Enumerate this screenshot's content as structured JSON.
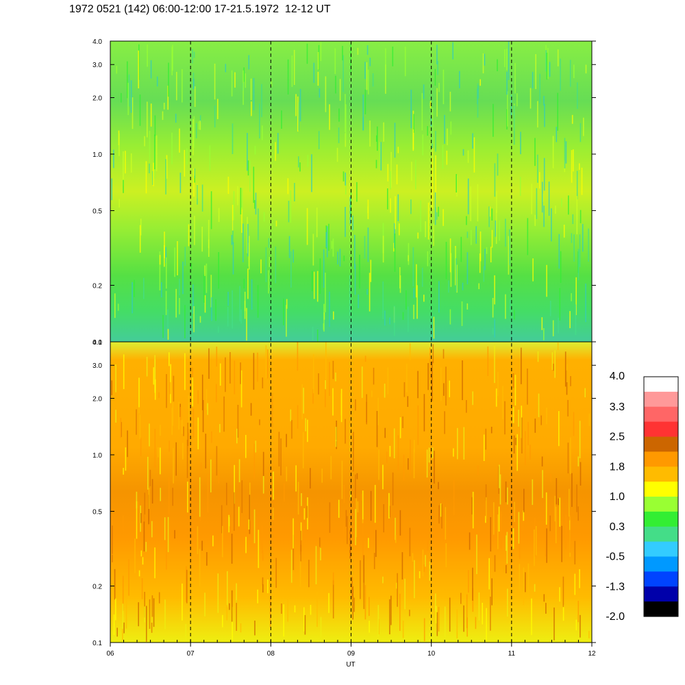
{
  "title": "1972 0521 (142) 06:00-12:00 17-21.5.1972  12-12 UT",
  "chart_data": {
    "type": "heatmap",
    "title": "1972 0521 (142) 06:00-12:00 17-21.5.1972  12-12 UT",
    "xlabel": "UT",
    "x_ticks": [
      "06",
      "07",
      "08",
      "09",
      "10",
      "11",
      "12"
    ],
    "xlim": [
      6,
      12
    ],
    "y_scale": "log",
    "ylim": [
      0.1,
      4.0
    ],
    "y_ticks": [
      "0.1",
      "0.2",
      "0.5",
      "1.0",
      "2.0",
      "3.0",
      "4.0"
    ],
    "y_values": [
      0.1,
      0.2,
      0.5,
      1.0,
      2.0,
      3.0,
      4.0
    ],
    "panels": [
      {
        "name": "upper",
        "dominant_levels": [
          {
            "y_range": [
              0.1,
              0.15
            ],
            "level": 0.0
          },
          {
            "y_range": [
              0.15,
              0.3
            ],
            "level": 0.3
          },
          {
            "y_range": [
              0.3,
              0.8
            ],
            "level": 0.8
          },
          {
            "y_range": [
              0.8,
              1.5
            ],
            "level": 0.9
          },
          {
            "y_range": [
              1.5,
              4.0
            ],
            "level": 0.6
          }
        ]
      },
      {
        "name": "lower",
        "dominant_levels": [
          {
            "y_range": [
              0.1,
              0.15
            ],
            "level": 1.2
          },
          {
            "y_range": [
              0.15,
              0.4
            ],
            "level": 1.5
          },
          {
            "y_range": [
              0.4,
              1.2
            ],
            "level": 1.8
          },
          {
            "y_range": [
              1.2,
              3.5
            ],
            "level": 1.6
          },
          {
            "y_range": [
              3.5,
              4.0
            ],
            "level": 1.0
          }
        ]
      }
    ],
    "colorbar": {
      "labels": [
        "4.0",
        "3.3",
        "2.5",
        "1.8",
        "1.0",
        "0.3",
        "-0.5",
        "-1.3",
        "-2.0"
      ],
      "colors": [
        "#ffffff",
        "#ff9999",
        "#ff6666",
        "#ff3333",
        "#cc6600",
        "#ff9900",
        "#ffbb00",
        "#ffff00",
        "#99ff33",
        "#33ee33",
        "#44dd88",
        "#33ccff",
        "#0099ff",
        "#0044ff",
        "#0000aa",
        "#000000"
      ]
    },
    "grid": "dashed vertical lines at each hour"
  }
}
